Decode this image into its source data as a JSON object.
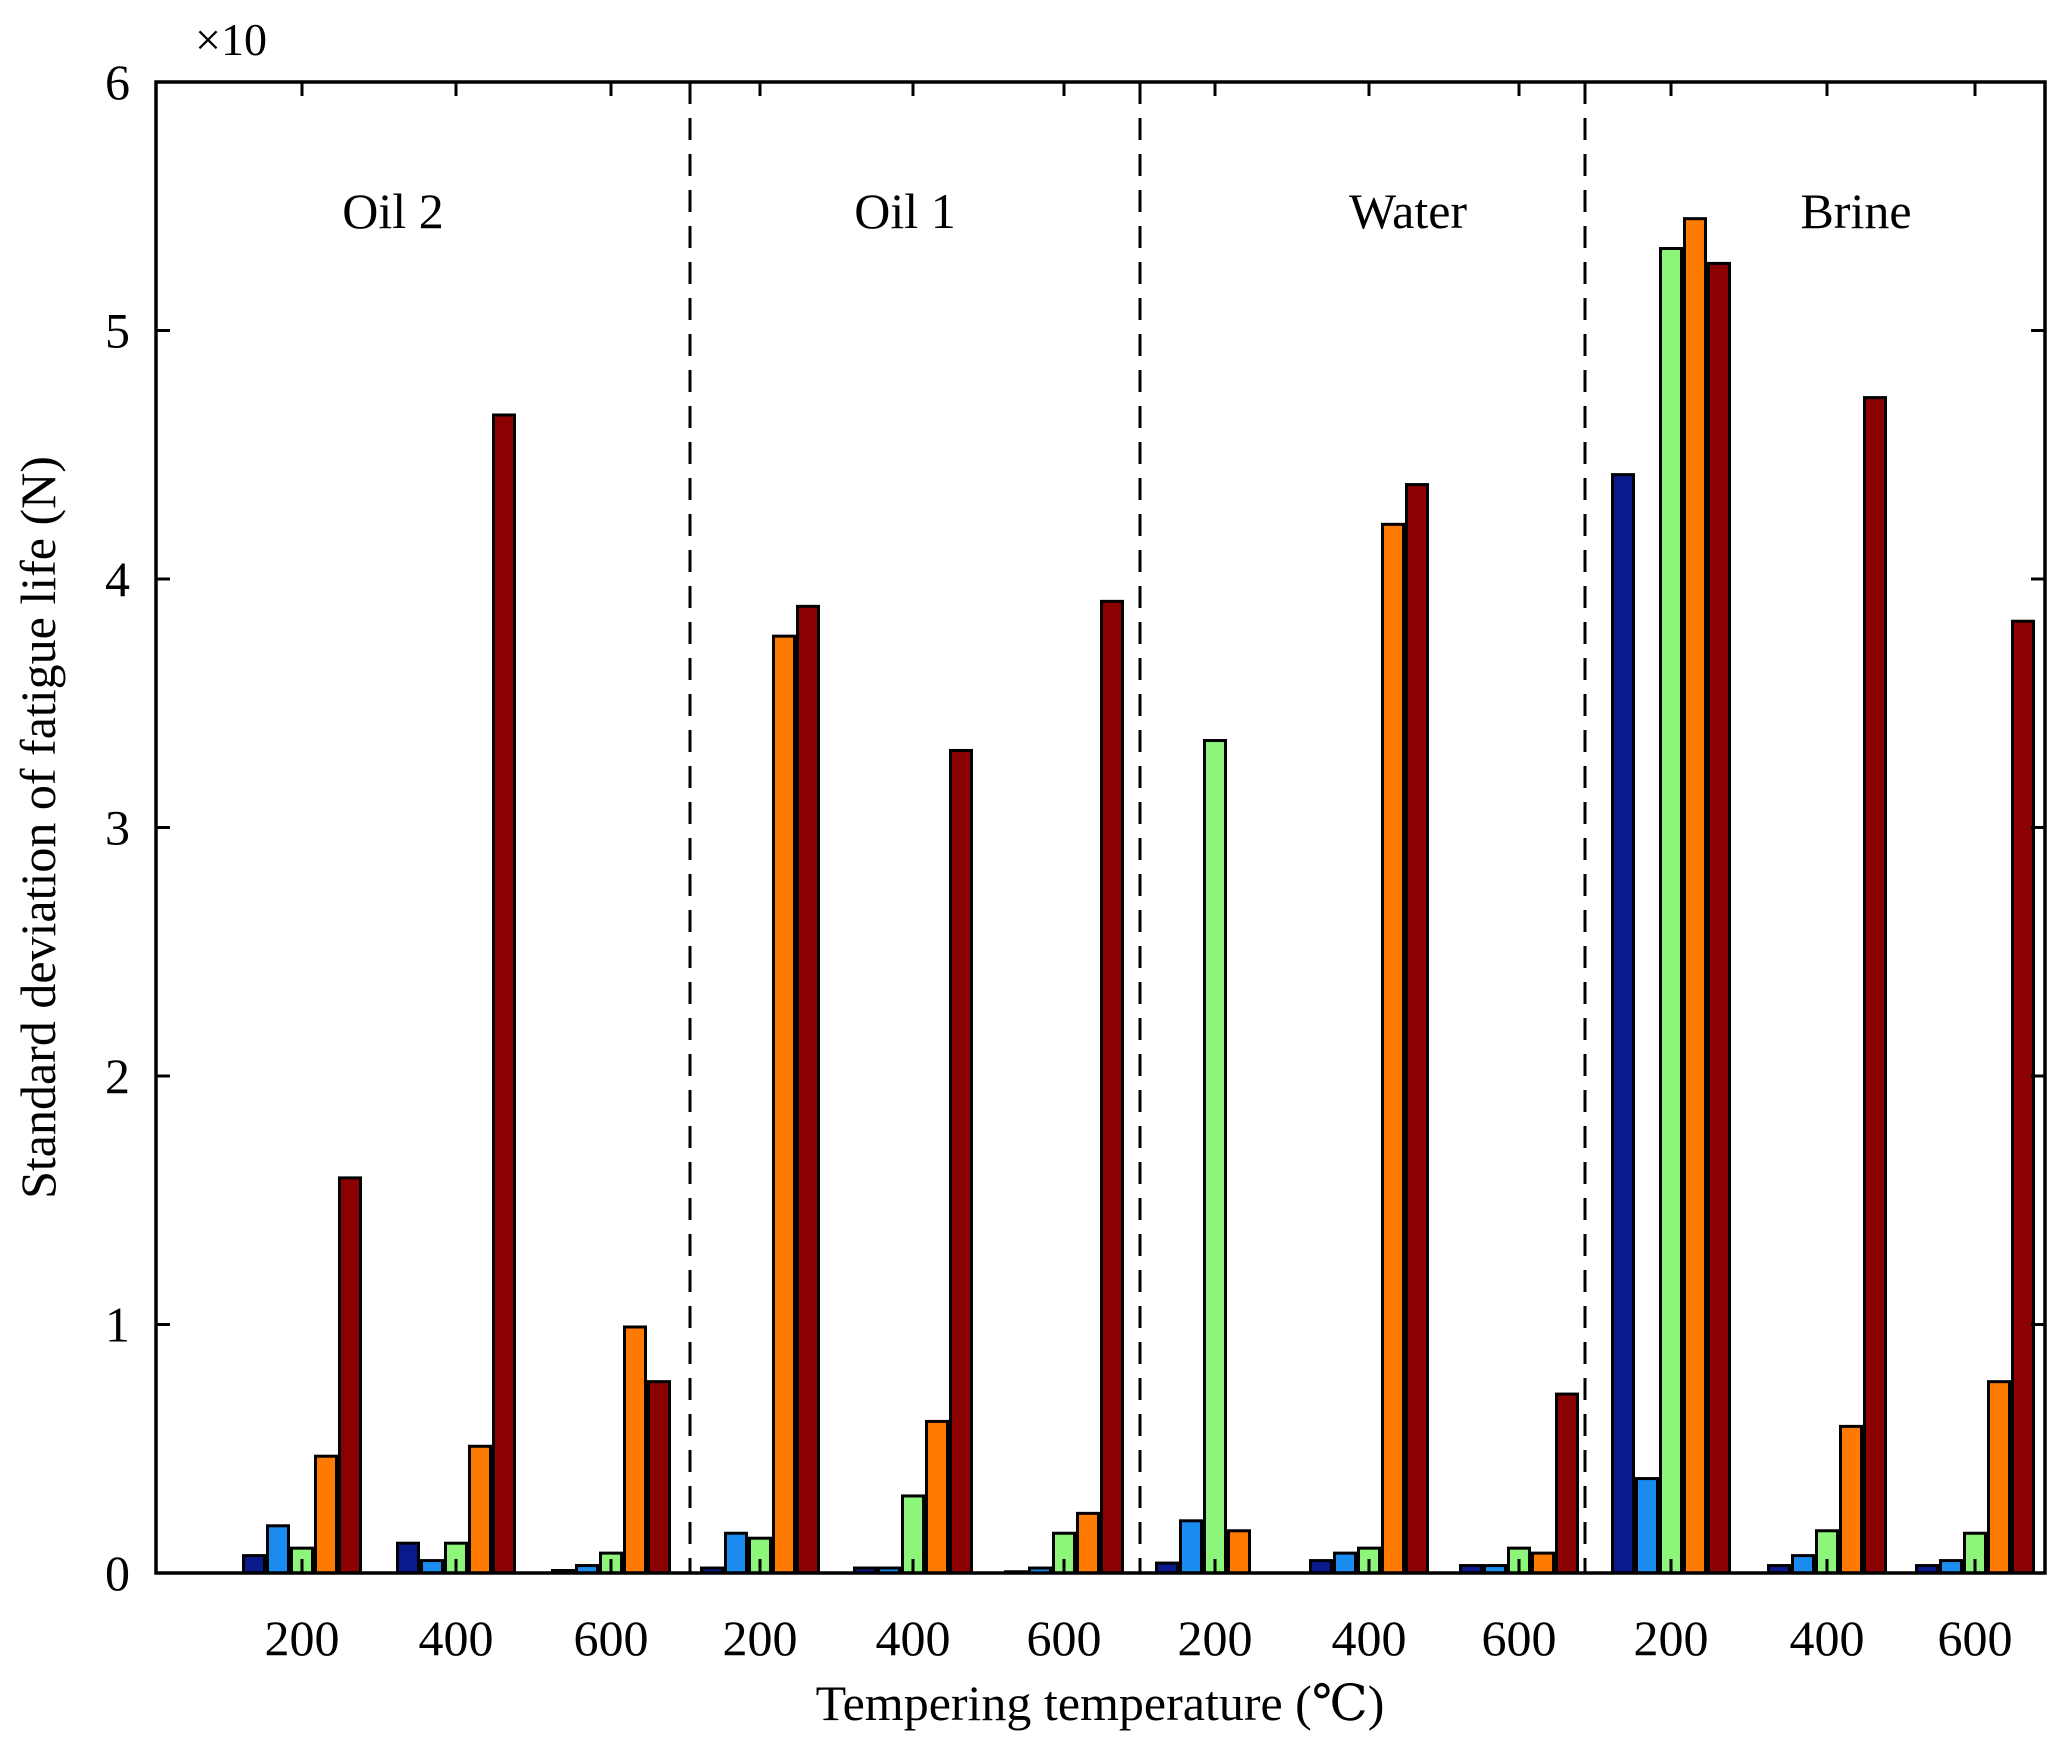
{
  "chart_data": {
    "type": "bar",
    "title": "",
    "xlabel": "Tempering temperature (℃)",
    "ylabel": "Standard deviation of fatigue life (N)",
    "y_multiplier_label": "×10",
    "ylim": [
      0,
      6
    ],
    "y_ticks": [
      "0",
      "1",
      "2",
      "3",
      "4",
      "5",
      "6"
    ],
    "grid": false,
    "series_colors": [
      "#0a1a8c",
      "#1a8cf0",
      "#8cf57a",
      "#ff7a00",
      "#8b0000"
    ],
    "groups": [
      {
        "label": "Oil 2",
        "categories": [
          {
            "label": "200",
            "values": [
              0.07,
              0.19,
              0.1,
              0.47,
              1.59
            ]
          },
          {
            "label": "400",
            "values": [
              0.12,
              0.05,
              0.12,
              0.51,
              4.66
            ]
          },
          {
            "label": "600",
            "values": [
              0.01,
              0.03,
              0.08,
              0.99,
              0.77
            ]
          }
        ]
      },
      {
        "label": "Oil 1",
        "categories": [
          {
            "label": "200",
            "values": [
              0.02,
              0.16,
              0.14,
              3.77,
              3.89
            ]
          },
          {
            "label": "400",
            "values": [
              0.02,
              0.02,
              0.31,
              0.61,
              3.31
            ]
          },
          {
            "label": "600",
            "values": [
              0.005,
              0.02,
              0.16,
              0.24,
              3.91
            ]
          }
        ]
      },
      {
        "label": "Water",
        "categories": [
          {
            "label": "200",
            "values": [
              0.04,
              0.21,
              3.35,
              0.17,
              0.0
            ]
          },
          {
            "label": "400",
            "values": [
              0.05,
              0.08,
              0.1,
              4.22,
              4.38
            ]
          },
          {
            "label": "600",
            "values": [
              0.03,
              0.03,
              0.1,
              0.08,
              0.72
            ]
          }
        ]
      },
      {
        "label": "Brine",
        "categories": [
          {
            "label": "200",
            "values": [
              4.42,
              0.38,
              5.33,
              5.45,
              5.27
            ]
          },
          {
            "label": "400",
            "values": [
              0.03,
              0.07,
              0.17,
              0.59,
              4.73
            ]
          },
          {
            "label": "600",
            "values": [
              0.03,
              0.05,
              0.16,
              0.77,
              3.83
            ]
          }
        ]
      }
    ]
  }
}
